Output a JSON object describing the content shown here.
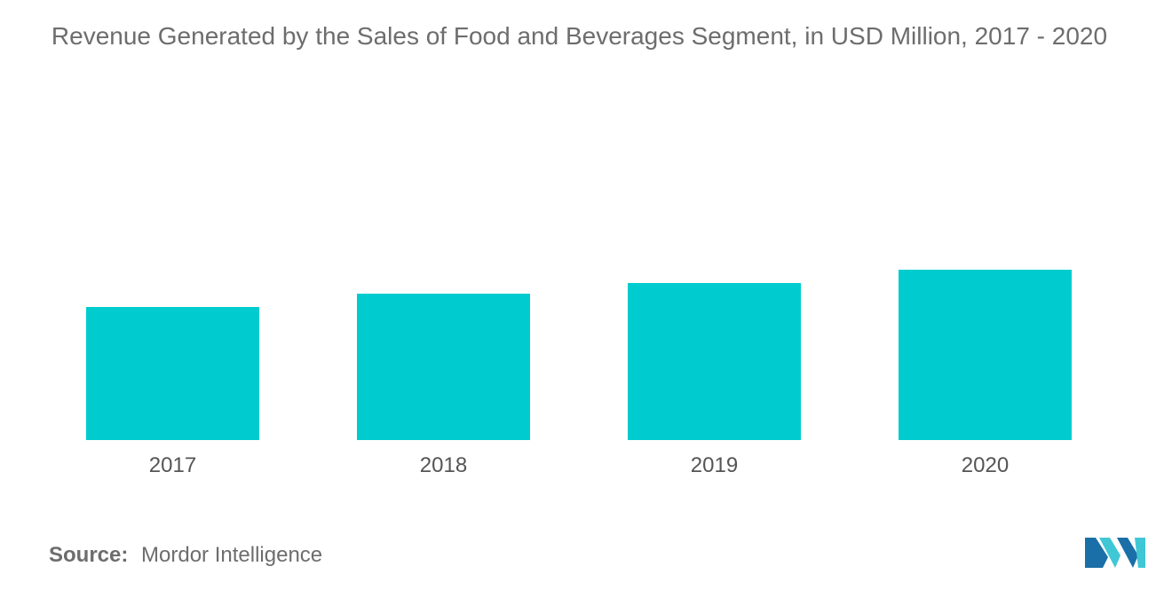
{
  "chart_data": {
    "type": "bar",
    "title": "Revenue Generated by the Sales of Food and Beverages Segment, in USD Million, 2017 - 2020",
    "categories": [
      "2017",
      "2018",
      "2019",
      "2020"
    ],
    "values": [
      50,
      55,
      59,
      64
    ],
    "xlabel": "",
    "ylabel": "",
    "ylim": [
      0,
      100
    ],
    "grid": false,
    "bar_color": "#00cccf"
  },
  "source": {
    "label": "Source:",
    "value": "Mordor Intelligence"
  },
  "logo": {
    "icon": "mordor-intelligence-logo-icon",
    "colors": [
      "#1b6fa8",
      "#3fc7d6"
    ]
  }
}
